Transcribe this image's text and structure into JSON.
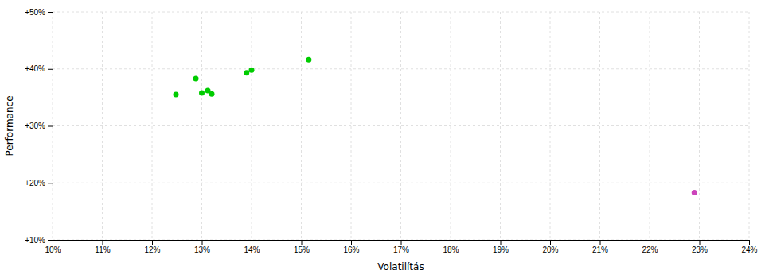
{
  "chart_data": {
    "type": "scatter",
    "xlabel": "Volatilítás",
    "ylabel": "Performance",
    "xlim": [
      0.1,
      0.24
    ],
    "ylim": [
      0.1,
      0.5
    ],
    "xticks": [
      {
        "value": 0.1,
        "label": "10%"
      },
      {
        "value": 0.11,
        "label": "11%"
      },
      {
        "value": 0.12,
        "label": "12%"
      },
      {
        "value": 0.13,
        "label": "13%"
      },
      {
        "value": 0.14,
        "label": "14%"
      },
      {
        "value": 0.15,
        "label": "15%"
      },
      {
        "value": 0.16,
        "label": "16%"
      },
      {
        "value": 0.17,
        "label": "17%"
      },
      {
        "value": 0.18,
        "label": "18%"
      },
      {
        "value": 0.19,
        "label": "19%"
      },
      {
        "value": 0.2,
        "label": "20%"
      },
      {
        "value": 0.21,
        "label": "21%"
      },
      {
        "value": 0.22,
        "label": "22%"
      },
      {
        "value": 0.23,
        "label": "23%"
      },
      {
        "value": 0.24,
        "label": "24%"
      }
    ],
    "yticks": [
      {
        "value": 0.1,
        "label": "+10%"
      },
      {
        "value": 0.2,
        "label": "+20%"
      },
      {
        "value": 0.3,
        "label": "+30%"
      },
      {
        "value": 0.4,
        "label": "+40%"
      },
      {
        "value": 0.5,
        "label": "+50%"
      }
    ],
    "grid": true,
    "series": [
      {
        "color": "#00cc00",
        "x": [
          0.1248,
          0.1288,
          0.13,
          0.1312,
          0.132,
          0.139,
          0.14,
          0.1515
        ],
        "values": [
          0.355,
          0.383,
          0.358,
          0.362,
          0.356,
          0.393,
          0.398,
          0.416
        ]
      },
      {
        "color": "#cc44bb",
        "x": [
          0.229
        ],
        "values": [
          0.183
        ]
      }
    ]
  }
}
